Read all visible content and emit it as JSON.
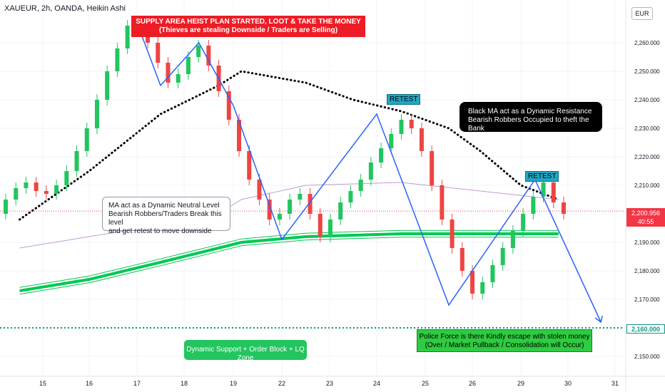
{
  "header": {
    "symbol": "XAUEUR, 2h, OANDA, Heikin Ashi",
    "currency": "EUR"
  },
  "annotations": {
    "supply": "SUPPLY AREA HEIST PLAN STARTED, LOOT & TAKE THE MONEY\n(Thieves are stealing Downside / Traders are Selling)",
    "ma_note": "MA act as a Dynamic Neutral Level\nBearish Robbers/Traders Break this level\nand get retest to move downside",
    "black_ma_note": "Black MA act as a Dynamic Resistance\nBearish Robbers Occupied to theft the Bank",
    "retest_1": "RETEST",
    "retest_2": "RETEST",
    "police": "Police Force is there Kindly escape with stolen money\n(Over / Market Pullback / Consolidation will Occur)",
    "support": "Dynamic Support + Order Block + LQ Zone"
  },
  "price_tag": {
    "price": "2,200.956",
    "timer": "40:55"
  },
  "level_tag": "2,160.000",
  "colors": {
    "up": "#22c55e",
    "down": "#ef4444",
    "trend": "#2962ff",
    "support": "#00c853",
    "resistance_ma": "#000000",
    "level": "#089981"
  },
  "chart_data": {
    "type": "candlestick",
    "ylim": [
      2143,
      2275
    ],
    "y_ticks": [
      "2,150.000",
      "2,160.000",
      "2,170.000",
      "2,180.000",
      "2,190.000",
      "2,200.000",
      "2,210.000",
      "2,220.000",
      "2,230.000",
      "2,240.000",
      "2,250.000",
      "2,260.000"
    ],
    "y_tick_values": [
      2150,
      2160,
      2170,
      2180,
      2190,
      2200,
      2210,
      2220,
      2230,
      2240,
      2250,
      2260
    ],
    "x_ticks": [
      "15",
      "16",
      "17",
      "18",
      "19",
      "22",
      "23",
      "24",
      "25",
      "26",
      "29",
      "30",
      "31"
    ],
    "current_price": 2200.956,
    "key_level": 2160,
    "trend_points": [
      [
        17,
        2267
      ],
      [
        17.5,
        2245
      ],
      [
        18.3,
        2260
      ],
      [
        19,
        2238
      ],
      [
        22,
        2191
      ],
      [
        24,
        2235
      ],
      [
        25.5,
        2168
      ],
      [
        29.3,
        2212
      ],
      [
        30.7,
        2162
      ]
    ],
    "black_ma": [
      [
        14.5,
        2198
      ],
      [
        16,
        2215
      ],
      [
        17.5,
        2235
      ],
      [
        18.7,
        2245
      ],
      [
        19.5,
        2250
      ],
      [
        22.5,
        2246
      ],
      [
        23.5,
        2240
      ],
      [
        24.5,
        2236
      ],
      [
        25.5,
        2230
      ],
      [
        26.5,
        2222
      ],
      [
        29,
        2210
      ],
      [
        29.8,
        2205
      ]
    ],
    "green_ma": [
      [
        14.5,
        2173
      ],
      [
        16,
        2177
      ],
      [
        17.5,
        2183
      ],
      [
        18.7,
        2188
      ],
      [
        19.5,
        2190
      ],
      [
        22.5,
        2192
      ],
      [
        24.5,
        2193
      ],
      [
        29.8,
        2193
      ]
    ],
    "purple_ma": [
      [
        14.5,
        2188
      ],
      [
        16,
        2192
      ],
      [
        17.5,
        2196
      ],
      [
        18.7,
        2200
      ],
      [
        19.5,
        2205
      ],
      [
        22.5,
        2210
      ],
      [
        24.5,
        2211
      ],
      [
        26.5,
        2208
      ],
      [
        29.8,
        2205
      ]
    ],
    "candles": [
      [
        2200,
        2205
      ],
      [
        2205,
        2209
      ],
      [
        2209,
        2211
      ],
      [
        2211,
        2208
      ],
      [
        2208,
        2207
      ],
      [
        2207,
        2210
      ],
      [
        2210,
        2215
      ],
      [
        2215,
        2222
      ],
      [
        2222,
        2230
      ],
      [
        2230,
        2240
      ],
      [
        2240,
        2250
      ],
      [
        2250,
        2258
      ],
      [
        2258,
        2266
      ],
      [
        2266,
        2264
      ],
      [
        2264,
        2260
      ],
      [
        2260,
        2253
      ],
      [
        2253,
        2246
      ],
      [
        2246,
        2249
      ],
      [
        2249,
        2255
      ],
      [
        2255,
        2259
      ],
      [
        2259,
        2252
      ],
      [
        2252,
        2243
      ],
      [
        2243,
        2233
      ],
      [
        2233,
        2222
      ],
      [
        2222,
        2212
      ],
      [
        2212,
        2205
      ],
      [
        2205,
        2198
      ],
      [
        2198,
        2200
      ],
      [
        2200,
        2205
      ],
      [
        2205,
        2207
      ],
      [
        2207,
        2200
      ],
      [
        2200,
        2192
      ],
      [
        2192,
        2198
      ],
      [
        2198,
        2204
      ],
      [
        2204,
        2208
      ],
      [
        2208,
        2212
      ],
      [
        2212,
        2218
      ],
      [
        2218,
        2223
      ],
      [
        2223,
        2228
      ],
      [
        2228,
        2233
      ],
      [
        2233,
        2230
      ],
      [
        2230,
        2222
      ],
      [
        2222,
        2210
      ],
      [
        2210,
        2198
      ],
      [
        2198,
        2188
      ],
      [
        2188,
        2180
      ],
      [
        2180,
        2172
      ],
      [
        2172,
        2176
      ],
      [
        2176,
        2182
      ],
      [
        2182,
        2188
      ],
      [
        2188,
        2194
      ],
      [
        2194,
        2200
      ],
      [
        2200,
        2206
      ],
      [
        2206,
        2211
      ],
      [
        2211,
        2204
      ],
      [
        2204,
        2200
      ]
    ]
  }
}
